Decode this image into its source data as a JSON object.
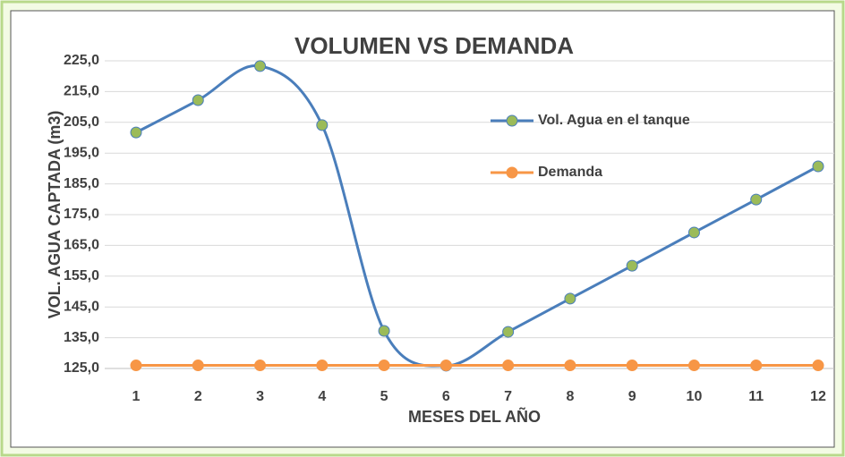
{
  "chart_data": {
    "type": "line",
    "title": "VOLUMEN VS DEMANDA",
    "x_label": "MESES DEL AÑO",
    "y_label": "VOL. AGUA CAPTADA (m3)",
    "categories": [
      "1",
      "2",
      "3",
      "4",
      "5",
      "6",
      "7",
      "8",
      "9",
      "10",
      "11",
      "12"
    ],
    "series": [
      {
        "name": "Vol. Agua en el tanque",
        "color": "#4a7ebb",
        "marker_color": "#9bbb59",
        "smooth": true,
        "values": [
          201.7,
          212.2,
          223.3,
          204.1,
          137.2,
          125.9,
          136.9,
          147.7,
          158.4,
          169.2,
          179.9,
          190.7
        ]
      },
      {
        "name": "Demanda",
        "color": "#f79646",
        "marker_color": "#f79646",
        "smooth": false,
        "values": [
          126,
          126,
          126,
          126,
          126,
          126,
          126,
          126,
          126,
          126,
          126,
          126
        ]
      }
    ],
    "ylim": [
      125,
      225
    ],
    "yticks": [
      {
        "value": 125,
        "label": "125,0"
      },
      {
        "value": 135,
        "label": "135,0"
      },
      {
        "value": 145,
        "label": "145,0"
      },
      {
        "value": 155,
        "label": "155,0"
      },
      {
        "value": 165,
        "label": "165,0"
      },
      {
        "value": 175,
        "label": "175,0"
      },
      {
        "value": 185,
        "label": "185,0"
      },
      {
        "value": 195,
        "label": "195,0"
      },
      {
        "value": 205,
        "label": "205,0"
      },
      {
        "value": 215,
        "label": "215,0"
      },
      {
        "value": 225,
        "label": "225,0"
      }
    ],
    "grid": true,
    "legend": "right"
  }
}
